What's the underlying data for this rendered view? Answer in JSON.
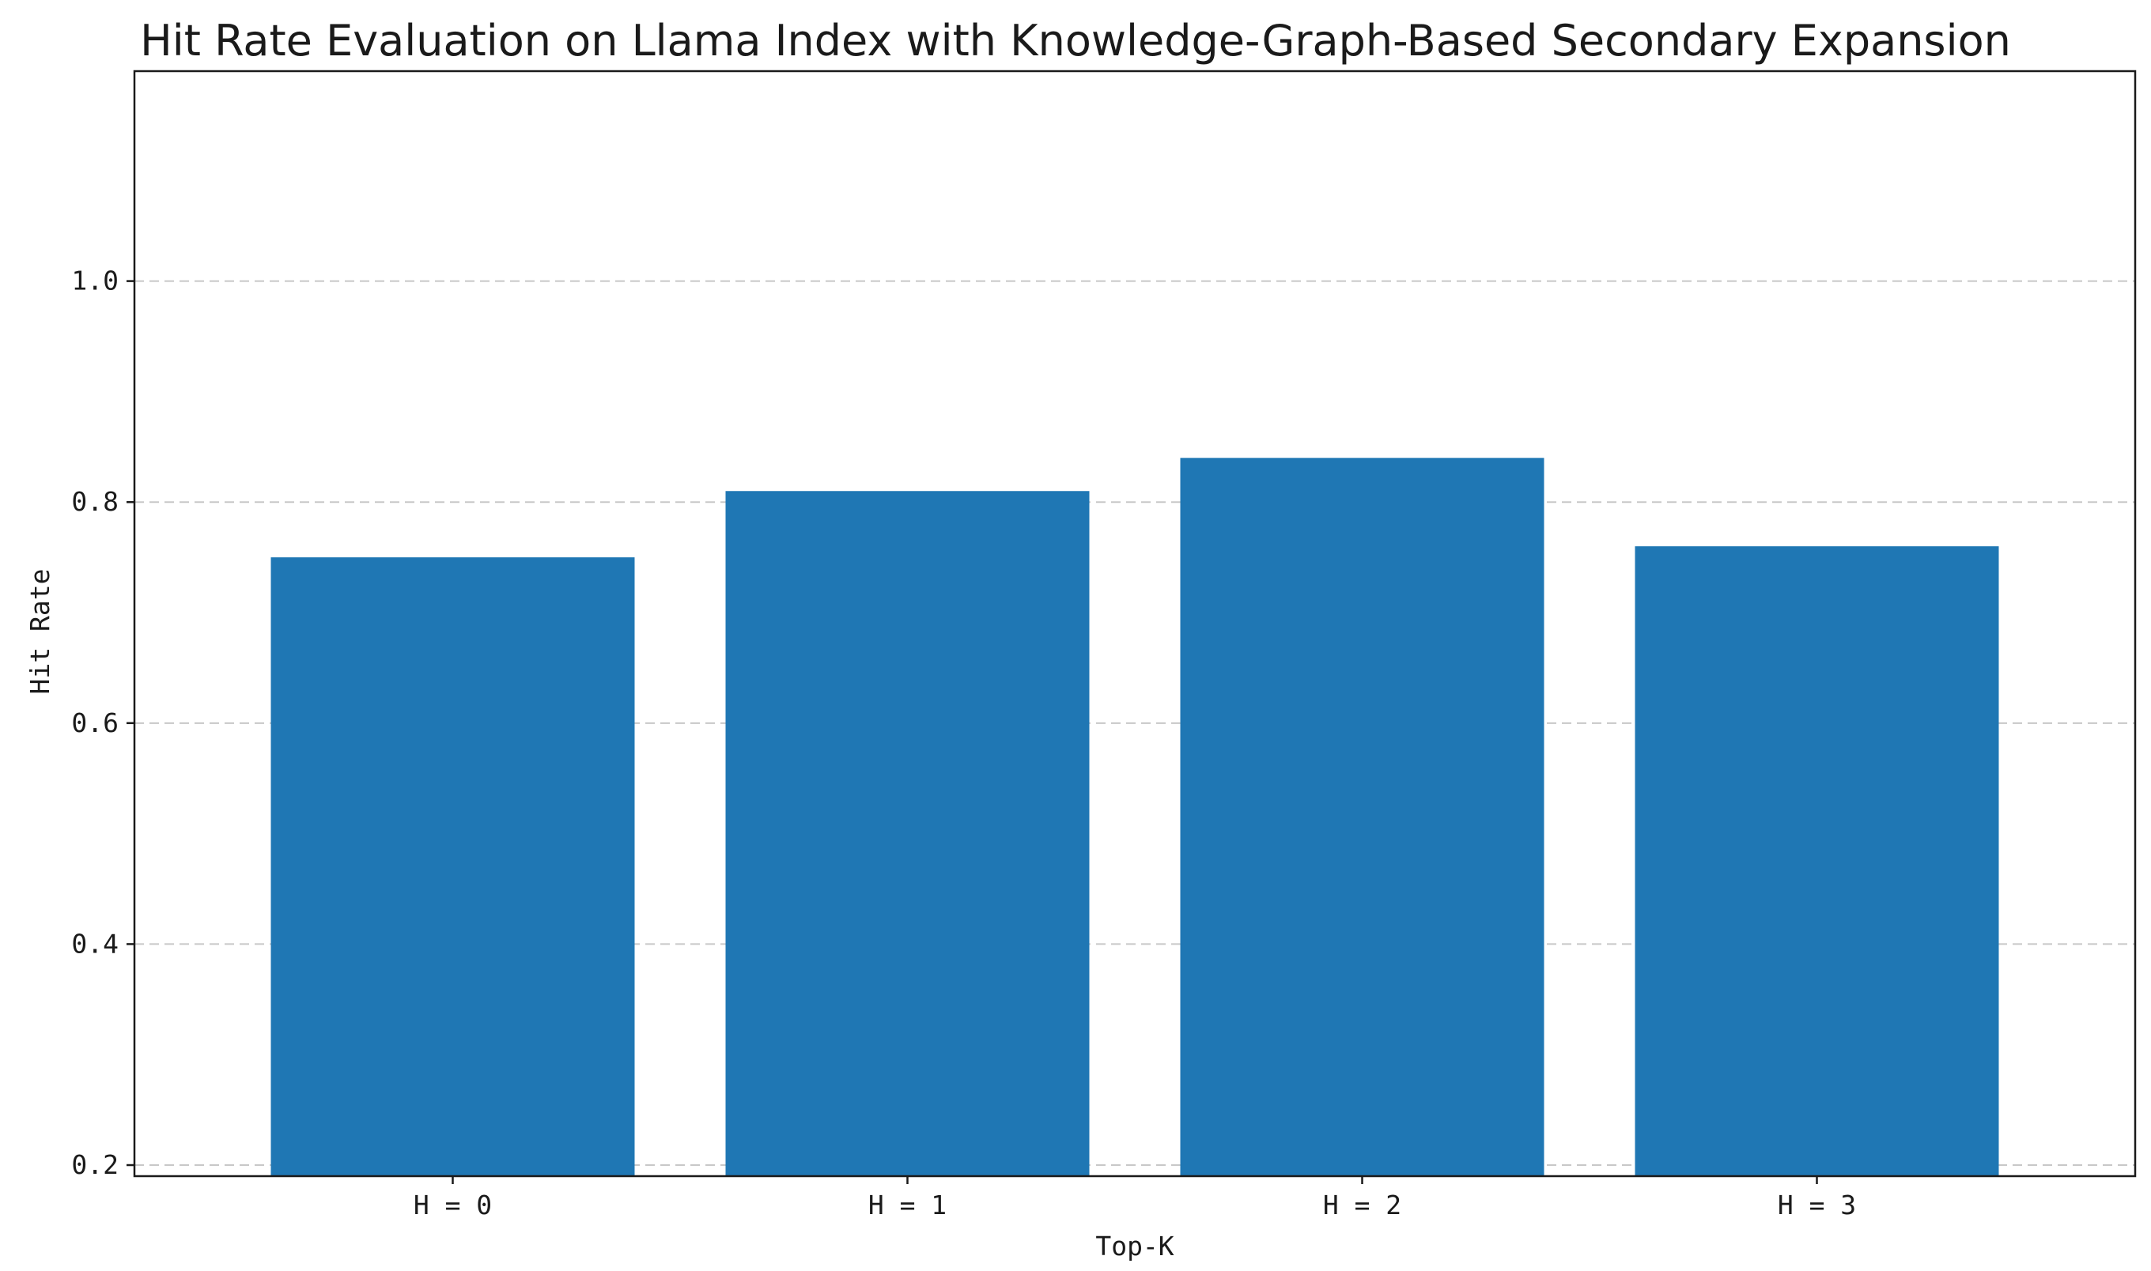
{
  "chart_data": {
    "type": "bar",
    "title": "Hit Rate Evaluation on Llama Index with Knowledge-Graph-Based Secondary Expansion",
    "xlabel": "Top-K",
    "ylabel": "Hit Rate",
    "categories": [
      "H = 0",
      "H = 1",
      "H = 2",
      "H = 3"
    ],
    "values": [
      0.75,
      0.81,
      0.84,
      0.76
    ],
    "ylim": [
      0.19,
      1.19
    ],
    "yticks": [
      0.2,
      0.4,
      0.6,
      0.8,
      1.0
    ],
    "ytick_labels": [
      "0.2",
      "0.4",
      "0.6",
      "0.8",
      "1.0"
    ],
    "grid": "y, dashed",
    "bar_color": "#1f77b4",
    "legend": "none"
  }
}
